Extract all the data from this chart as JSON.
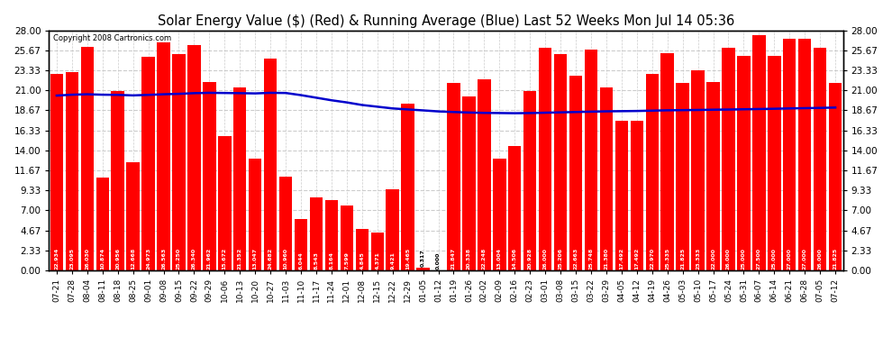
{
  "title": "Solar Energy Value ($) (Red) & Running Average (Blue) Last 52 Weeks Mon Jul 14 05:36",
  "copyright": "Copyright 2008 Cartronics.com",
  "bar_color": "#ff0000",
  "line_color": "#0000cc",
  "bg_color": "#ffffff",
  "grid_color": "#cccccc",
  "ylim": [
    0,
    28.0
  ],
  "yticks": [
    0.0,
    2.33,
    4.67,
    7.0,
    9.33,
    11.67,
    14.0,
    16.33,
    18.67,
    21.0,
    23.33,
    25.67,
    28.0
  ],
  "categories": [
    "07-21",
    "07-28",
    "08-04",
    "08-11",
    "08-18",
    "08-25",
    "09-01",
    "09-08",
    "09-15",
    "09-22",
    "09-29",
    "10-06",
    "10-13",
    "10-20",
    "10-27",
    "11-03",
    "11-10",
    "11-17",
    "11-24",
    "12-01",
    "12-08",
    "12-15",
    "12-22",
    "12-29",
    "01-05",
    "01-12",
    "01-19",
    "01-26",
    "02-02",
    "02-09",
    "02-16",
    "02-23",
    "03-01",
    "03-08",
    "03-15",
    "03-22",
    "03-29",
    "04-05",
    "04-12",
    "04-19",
    "04-26",
    "05-03",
    "05-10",
    "05-17",
    "05-24",
    "05-31",
    "06-07",
    "06-14",
    "06-21",
    "06-28",
    "07-05",
    "07-12"
  ],
  "values": [
    22.934,
    23.095,
    26.03,
    10.874,
    20.956,
    12.668,
    24.973,
    26.563,
    25.25,
    26.34,
    21.962,
    15.672,
    21.352,
    13.047,
    24.682,
    10.96,
    6.044,
    8.543,
    8.164,
    7.599,
    4.845,
    4.371,
    9.421,
    19.465,
    0.317,
    0.0,
    21.847,
    20.338,
    22.248,
    13.004,
    14.506,
    20.928,
    26.0,
    25.206,
    22.663,
    25.748,
    21.38,
    17.492,
    17.492,
    22.97,
    25.335,
    21.825,
    23.333,
    22.0,
    26.0,
    25.0,
    27.5,
    25.0,
    27.0,
    27.0,
    26.0,
    21.825
  ],
  "running_avg": [
    20.4,
    20.5,
    20.55,
    20.5,
    20.48,
    20.42,
    20.48,
    20.55,
    20.6,
    20.68,
    20.72,
    20.7,
    20.68,
    20.65,
    20.72,
    20.7,
    20.45,
    20.15,
    19.85,
    19.6,
    19.3,
    19.1,
    18.9,
    18.78,
    18.67,
    18.55,
    18.48,
    18.42,
    18.38,
    18.36,
    18.34,
    18.36,
    18.4,
    18.44,
    18.48,
    18.52,
    18.56,
    18.58,
    18.6,
    18.64,
    18.68,
    18.7,
    18.72,
    18.75,
    18.77,
    18.8,
    18.83,
    18.86,
    18.9,
    18.93,
    18.96,
    19.0
  ],
  "label_fontsize": 4.5,
  "tick_fontsize": 7.5,
  "xlabel_fontsize": 6.5,
  "title_fontsize": 10.5
}
